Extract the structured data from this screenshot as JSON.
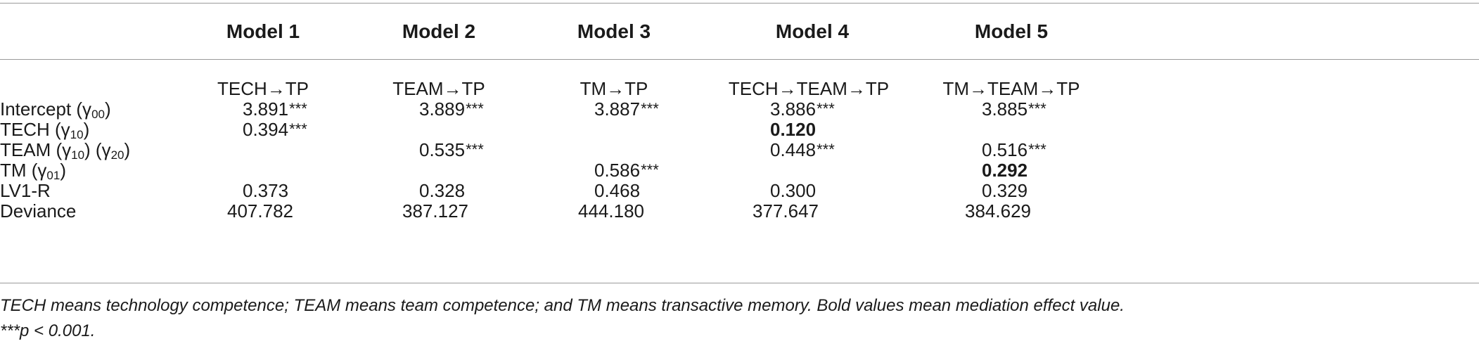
{
  "table": {
    "columns": [
      "Model 1",
      "Model 2",
      "Model 3",
      "Model 4",
      "Model 5"
    ],
    "paths": [
      "TECH→TP",
      "TEAM→TP",
      "TM→TP",
      "TECH→TEAM→TP",
      "TM→TEAM→TP"
    ],
    "rows": [
      {
        "label": "Intercept (γ",
        "sub": "00",
        "tail": ")",
        "values": [
          "3.891",
          "3.889",
          "3.887",
          "3.886",
          "3.885"
        ],
        "stars": [
          "***",
          "***",
          "***",
          "***",
          "***"
        ]
      },
      {
        "label": "TECH (γ",
        "sub": "10",
        "tail": ")",
        "values": [
          "0.394",
          "",
          "",
          "0.120",
          ""
        ],
        "stars": [
          "***",
          "",
          "",
          "",
          ""
        ]
      },
      {
        "label": "TEAM (γ",
        "sub": "10",
        "mid": ") (γ",
        "sub2": "20",
        "tail": ")",
        "values": [
          "",
          "0.535",
          "",
          "0.448",
          "0.516"
        ],
        "stars": [
          "",
          "***",
          "",
          "***",
          "***"
        ]
      },
      {
        "label": "TM (γ",
        "sub": "01",
        "tail": ")",
        "values": [
          "",
          "",
          "0.586",
          "",
          "0.292"
        ],
        "stars": [
          "",
          "",
          "***",
          "",
          ""
        ]
      },
      {
        "label": "LV1-R",
        "values": [
          "0.373",
          "0.328",
          "0.468",
          "0.300",
          "0.329"
        ]
      },
      {
        "label": "Deviance",
        "values": [
          "407.782",
          "387.127",
          "444.180",
          "377.647",
          "384.629"
        ]
      }
    ]
  },
  "notes": {
    "line1": "TECH means technology competence; TEAM means team competence; and TM means transactive memory. Bold values mean mediation effect value.",
    "line2": "***p < 0.001."
  }
}
